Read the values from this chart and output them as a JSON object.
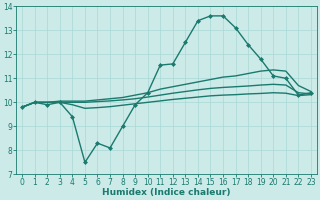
{
  "title": "",
  "xlabel": "Humidex (Indice chaleur)",
  "xlim": [
    -0.5,
    23.5
  ],
  "ylim": [
    7,
    14
  ],
  "xticks": [
    0,
    1,
    2,
    3,
    4,
    5,
    6,
    7,
    8,
    9,
    10,
    11,
    12,
    13,
    14,
    15,
    16,
    17,
    18,
    19,
    20,
    21,
    22,
    23
  ],
  "yticks": [
    7,
    8,
    9,
    10,
    11,
    12,
    13,
    14
  ],
  "background_color": "#cceae8",
  "line_color": "#1a7a6e",
  "lines": [
    {
      "x": [
        0,
        1,
        2,
        3,
        4,
        5,
        6,
        7,
        8,
        9,
        10,
        11,
        12,
        13,
        14,
        15,
        16,
        17,
        18,
        19,
        20,
        21,
        22,
        23
      ],
      "y": [
        9.8,
        10.0,
        9.9,
        10.0,
        9.4,
        7.5,
        8.3,
        8.1,
        9.0,
        9.9,
        10.4,
        11.55,
        11.6,
        12.5,
        13.4,
        13.6,
        13.6,
        13.1,
        12.4,
        11.8,
        11.1,
        11.0,
        10.3,
        10.4
      ],
      "marker": "D",
      "markersize": 2.0,
      "linewidth": 1.0
    },
    {
      "x": [
        0,
        1,
        2,
        3,
        4,
        5,
        6,
        7,
        8,
        9,
        10,
        11,
        12,
        13,
        14,
        15,
        16,
        17,
        18,
        19,
        20,
        21,
        22,
        23
      ],
      "y": [
        9.8,
        10.0,
        10.0,
        10.05,
        10.05,
        10.05,
        10.1,
        10.15,
        10.2,
        10.3,
        10.4,
        10.55,
        10.65,
        10.75,
        10.85,
        10.95,
        11.05,
        11.1,
        11.2,
        11.3,
        11.35,
        11.3,
        10.7,
        10.45
      ],
      "marker": null,
      "linewidth": 1.0
    },
    {
      "x": [
        0,
        1,
        2,
        3,
        4,
        5,
        6,
        7,
        8,
        9,
        10,
        11,
        12,
        13,
        14,
        15,
        16,
        17,
        18,
        19,
        20,
        21,
        22,
        23
      ],
      "y": [
        9.8,
        10.0,
        10.0,
        10.0,
        10.0,
        10.0,
        10.03,
        10.06,
        10.1,
        10.15,
        10.22,
        10.3,
        10.38,
        10.45,
        10.52,
        10.58,
        10.62,
        10.65,
        10.68,
        10.72,
        10.75,
        10.72,
        10.4,
        10.35
      ],
      "marker": null,
      "linewidth": 1.0
    },
    {
      "x": [
        0,
        1,
        2,
        3,
        4,
        5,
        6,
        7,
        8,
        9,
        10,
        11,
        12,
        13,
        14,
        15,
        16,
        17,
        18,
        19,
        20,
        21,
        22,
        23
      ],
      "y": [
        9.8,
        10.0,
        10.0,
        10.0,
        9.9,
        9.75,
        9.78,
        9.82,
        9.88,
        9.94,
        10.0,
        10.06,
        10.12,
        10.17,
        10.22,
        10.27,
        10.3,
        10.32,
        10.35,
        10.37,
        10.4,
        10.38,
        10.28,
        10.32
      ],
      "marker": null,
      "linewidth": 1.0
    }
  ],
  "grid_color": "#a8d8d5",
  "tick_fontsize": 5.5,
  "xlabel_fontsize": 6.5
}
